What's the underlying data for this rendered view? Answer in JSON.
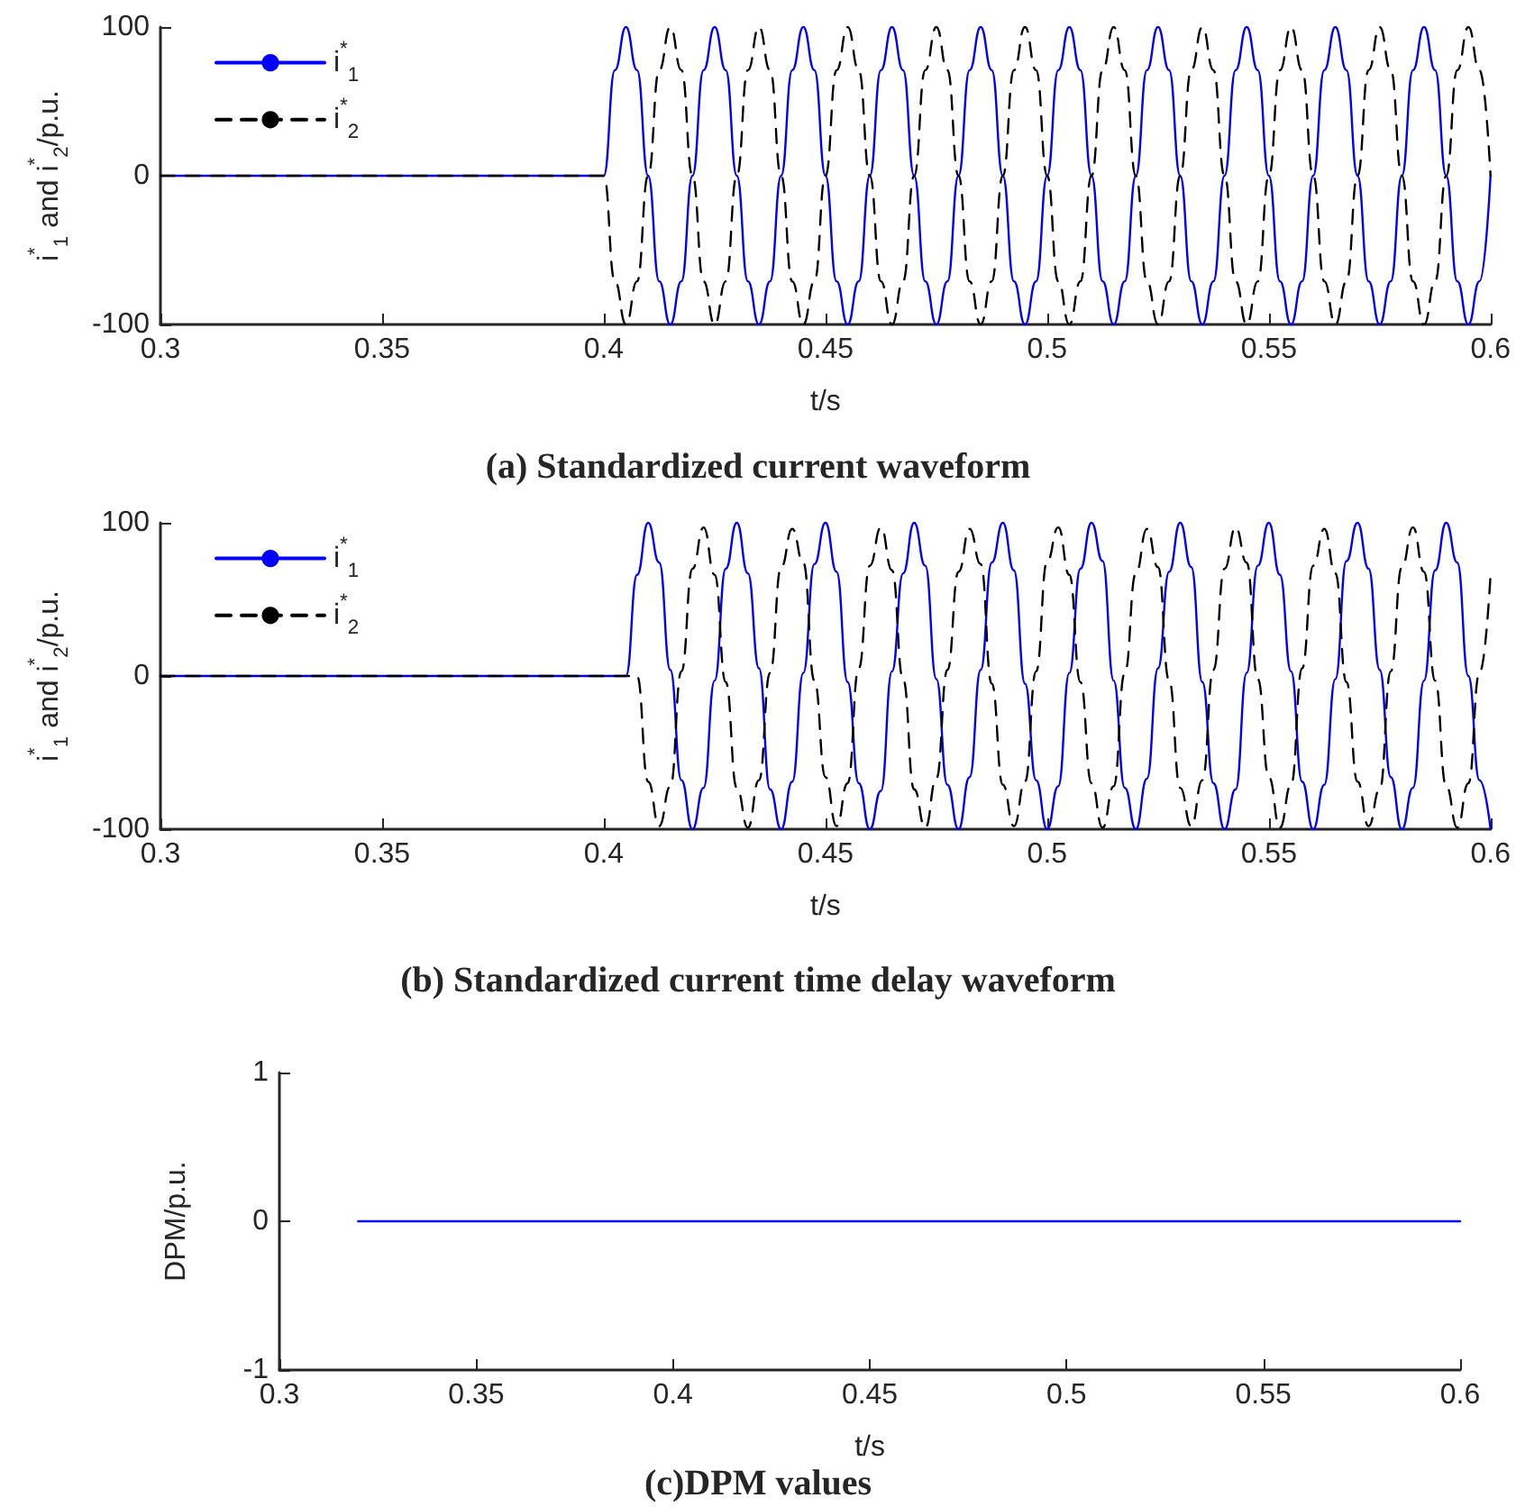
{
  "chart_data": [
    {
      "type": "line",
      "title": "(a) Standardized current waveform",
      "xlabel": "t/s",
      "ylabel": "i$^{*}$$_{1}$ and i$^{*}$$_{2}$/p.u.",
      "xlim": [
        0.3,
        0.6
      ],
      "xticks": [
        0.3,
        0.35,
        0.4,
        0.45,
        0.5,
        0.55,
        0.6
      ],
      "ylim": [
        -100,
        100
      ],
      "yticks": [
        -100,
        0,
        100
      ],
      "legend": "top left",
      "x": [
        0.3,
        0.4,
        0.4025,
        0.405,
        0.4075,
        0.41,
        0.4125,
        0.415,
        0.4175,
        0.42,
        0.4225,
        0.425,
        0.4275,
        0.43,
        0.4325,
        0.435,
        0.4375,
        0.44,
        0.4425,
        0.445,
        0.4475,
        0.45,
        0.4525,
        0.455,
        0.4575,
        0.46,
        0.4625,
        0.465,
        0.4675,
        0.47,
        0.4725,
        0.475,
        0.4775,
        0.48,
        0.4825,
        0.485,
        0.4875,
        0.49,
        0.4925,
        0.495,
        0.4975,
        0.5,
        0.5025,
        0.505,
        0.5075,
        0.51,
        0.5125,
        0.515,
        0.5175,
        0.52,
        0.5225,
        0.525,
        0.5275,
        0.53,
        0.5325,
        0.535,
        0.5375,
        0.54,
        0.5425,
        0.545,
        0.5475,
        0.55,
        0.5525,
        0.555,
        0.5575,
        0.56,
        0.5625,
        0.565,
        0.5675,
        0.57,
        0.5725,
        0.575,
        0.5775,
        0.58,
        0.5825,
        0.585,
        0.5875,
        0.59,
        0.5925,
        0.595,
        0.5975,
        0.6
      ],
      "series": [
        {
          "name": "i$^{*}$$_{1}$",
          "color": "#0000ff",
          "line_style": "solid",
          "values": [
            0,
            0,
            71,
            100,
            71,
            0,
            -71,
            -100,
            -71,
            0,
            71,
            100,
            71,
            0,
            -71,
            -100,
            -71,
            0,
            71,
            100,
            71,
            0,
            -71,
            -100,
            -71,
            0,
            71,
            100,
            71,
            0,
            -71,
            -100,
            -71,
            0,
            71,
            100,
            71,
            0,
            -71,
            -100,
            -71,
            0,
            71,
            100,
            71,
            0,
            -71,
            -100,
            -71,
            0,
            71,
            100,
            71,
            0,
            -71,
            -100,
            -71,
            0,
            71,
            100,
            71,
            0,
            -71,
            -100,
            -71,
            0,
            71,
            100,
            71,
            0,
            -71,
            -100,
            -71,
            0,
            71,
            100,
            71,
            0,
            -71,
            -100,
            -71,
            0
          ]
        },
        {
          "name": "i$^{*}$$_{2}$",
          "color": "#000000",
          "line_style": "dashed",
          "values": [
            0,
            0,
            -71,
            -100,
            -71,
            0,
            71,
            100,
            71,
            0,
            -71,
            -100,
            -71,
            0,
            71,
            100,
            71,
            0,
            -71,
            -100,
            -71,
            0,
            71,
            100,
            71,
            0,
            -71,
            -100,
            -71,
            0,
            71,
            100,
            71,
            0,
            -71,
            -100,
            -71,
            0,
            71,
            100,
            71,
            0,
            -71,
            -100,
            -71,
            0,
            71,
            100,
            71,
            0,
            -71,
            -100,
            -71,
            0,
            71,
            100,
            71,
            0,
            -71,
            -100,
            -71,
            0,
            71,
            100,
            71,
            0,
            -71,
            -100,
            -71,
            0,
            71,
            100,
            71,
            0,
            -71,
            -100,
            -71,
            0,
            71,
            100,
            71,
            0
          ]
        }
      ]
    },
    {
      "type": "line",
      "title": "(b) Standardized current time delay waveform",
      "xlabel": "t/s",
      "ylabel": "i$^{*}$$_{1}$ and i$^{*}$$_{2}$/p.u.",
      "xlim": [
        0.3,
        0.6
      ],
      "xticks": [
        0.3,
        0.35,
        0.4,
        0.45,
        0.5,
        0.55,
        0.6
      ],
      "ylim": [
        -100,
        100
      ],
      "yticks": [
        -100,
        0,
        100
      ],
      "legend": "top left",
      "series": [
        {
          "name": "i$^{*}$$_{1}$",
          "color": "#0000ff",
          "line_style": "solid",
          "x": [
            0.3,
            0.405,
            0.4075,
            0.41,
            0.4125,
            0.415,
            0.4175,
            0.42,
            0.4225,
            0.425,
            0.4275,
            0.43,
            0.4325,
            0.435,
            0.4375,
            0.44,
            0.4425,
            0.445,
            0.4475,
            0.45,
            0.4525,
            0.455,
            0.4575,
            0.46,
            0.4625,
            0.465,
            0.4675,
            0.47,
            0.4725,
            0.475,
            0.4775,
            0.48,
            0.4825,
            0.485,
            0.4875,
            0.49,
            0.4925,
            0.495,
            0.4975,
            0.5,
            0.5025,
            0.505,
            0.5075,
            0.51,
            0.5125,
            0.515,
            0.5175,
            0.52,
            0.5225,
            0.525,
            0.5275,
            0.53,
            0.5325,
            0.535,
            0.5375,
            0.54,
            0.5425,
            0.545,
            0.5475,
            0.55,
            0.5525,
            0.555,
            0.5575,
            0.56,
            0.5625,
            0.565,
            0.5675,
            0.57,
            0.5725,
            0.575,
            0.5775,
            0.58,
            0.5825,
            0.585,
            0.5875,
            0.59,
            0.5925,
            0.595,
            0.5975,
            0.6
          ],
          "values": [
            0,
            0,
            66,
            100,
            74,
            4,
            -68,
            -100,
            -73,
            -3,
            70,
            100,
            67,
            5,
            -74,
            -100,
            -69,
            2,
            73,
            100,
            68,
            -4,
            -70,
            -100,
            -75,
            3,
            67,
            100,
            72,
            -2,
            -71,
            -100,
            -66,
            4,
            74,
            100,
            69,
            -5,
            -68,
            -100,
            -72,
            2,
            70,
            100,
            75,
            -3,
            -73,
            -100,
            -67,
            5,
            68,
            100,
            71,
            -4,
            -70,
            -100,
            -74,
            2,
            72,
            100,
            66,
            3,
            -69,
            -100,
            -71,
            -2,
            75,
            100,
            70,
            4,
            -66,
            -100,
            -73,
            -3,
            69,
            100,
            74,
            0,
            -68,
            -100
          ]
        },
        {
          "name": "i$^{*}$$_{2}$",
          "color": "#000000",
          "line_style": "dashed",
          "x": [
            0.3,
            0.4075,
            0.41,
            0.4125,
            0.415,
            0.4175,
            0.42,
            0.4225,
            0.425,
            0.4275,
            0.43,
            0.4325,
            0.435,
            0.4375,
            0.44,
            0.4425,
            0.445,
            0.4475,
            0.45,
            0.4525,
            0.455,
            0.4575,
            0.46,
            0.4625,
            0.465,
            0.4675,
            0.47,
            0.4725,
            0.475,
            0.4775,
            0.48,
            0.4825,
            0.485,
            0.4875,
            0.49,
            0.4925,
            0.495,
            0.4975,
            0.5,
            0.5025,
            0.505,
            0.5075,
            0.51,
            0.5125,
            0.515,
            0.5175,
            0.52,
            0.5225,
            0.525,
            0.5275,
            0.53,
            0.5325,
            0.535,
            0.5375,
            0.54,
            0.5425,
            0.545,
            0.5475,
            0.55,
            0.5525,
            0.555,
            0.5575,
            0.56,
            0.5625,
            0.565,
            0.5675,
            0.57,
            0.5725,
            0.575,
            0.5775,
            0.58,
            0.5825,
            0.585,
            0.5875,
            0.59,
            0.5925,
            0.595,
            0.5975,
            0.6
          ],
          "values": [
            0,
            0,
            -69,
            -98,
            -72,
            3,
            70,
            97,
            66,
            -4,
            -73,
            -99,
            -68,
            2,
            71,
            96,
            74,
            -3,
            -66,
            -98,
            -70,
            5,
            72,
            97,
            69,
            -2,
            -74,
            -99,
            -67,
            4,
            68,
            96,
            73,
            -5,
            -71,
            -98,
            -69,
            3,
            75,
            97,
            66,
            -4,
            -70,
            -99,
            -72,
            2,
            67,
            96,
            71,
            -3,
            -73,
            -98,
            -68,
            4,
            70,
            97,
            74,
            -2,
            -66,
            -99,
            -71,
            5,
            72,
            96,
            67,
            -4,
            -69,
            -98,
            -74,
            3,
            71,
            97,
            68,
            -3,
            -72,
            -99,
            -70,
            2,
            66
          ]
        }
      ]
    },
    {
      "type": "line",
      "title": "(c)DPM values",
      "xlabel": "t/s",
      "ylabel": "DPM/p.u.",
      "xlim": [
        0.3,
        0.6
      ],
      "xticks": [
        0.3,
        0.35,
        0.4,
        0.45,
        0.5,
        0.55,
        0.6
      ],
      "ylim": [
        -1,
        1
      ],
      "yticks": [
        -1,
        0,
        1
      ],
      "series": [
        {
          "color": "#0000ff",
          "line_style": "solid",
          "x": [
            0.32,
            0.6
          ],
          "values": [
            0,
            0
          ]
        }
      ]
    }
  ]
}
